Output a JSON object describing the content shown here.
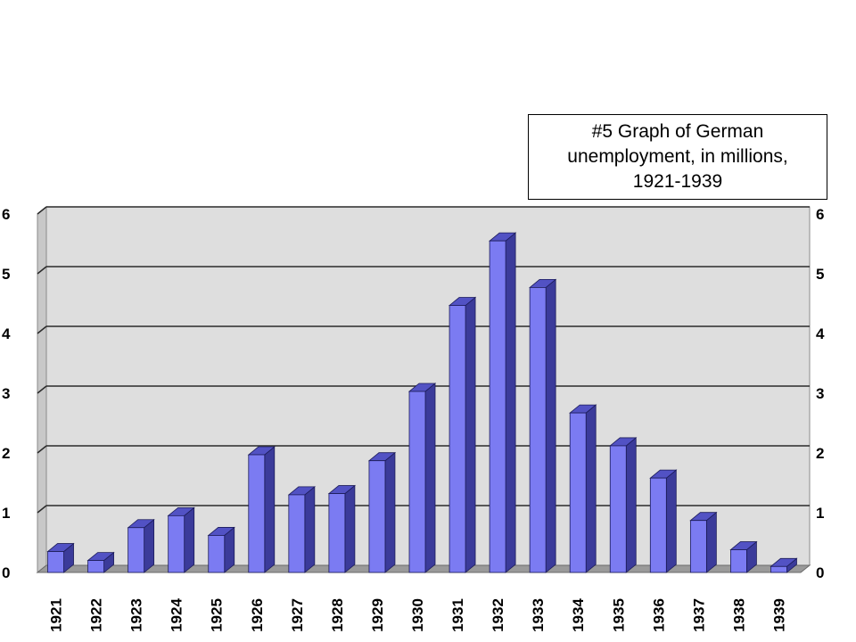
{
  "title": "#5 Graph of German unemployment, in millions, 1921-1939",
  "colors": {
    "bar_front": "#7b7bf2",
    "bar_side": "#3b3b9a",
    "bar_top": "#5252c4",
    "plot_bg": "#dedede",
    "gridline": "#2a2a2a"
  },
  "chart_data": {
    "type": "bar",
    "title": "#5 Graph of German unemployment, in millions, 1921-1939",
    "categories": [
      "1921",
      "1922",
      "1923",
      "1924",
      "1925",
      "1926",
      "1927",
      "1928",
      "1929",
      "1930",
      "1931",
      "1932",
      "1933",
      "1934",
      "1935",
      "1936",
      "1937",
      "1938",
      "1939"
    ],
    "values": [
      0.35,
      0.2,
      0.75,
      0.95,
      0.62,
      1.97,
      1.3,
      1.32,
      1.87,
      3.03,
      4.47,
      5.55,
      4.77,
      2.67,
      2.12,
      1.58,
      0.87,
      0.38,
      0.1
    ],
    "ylim": [
      0,
      6
    ],
    "yticks": [
      "0",
      "1",
      "2",
      "3",
      "4",
      "5",
      "6"
    ],
    "y_tick_labels_partially_visible": true,
    "grid": true,
    "bar_style": "3d",
    "legend": "none"
  }
}
